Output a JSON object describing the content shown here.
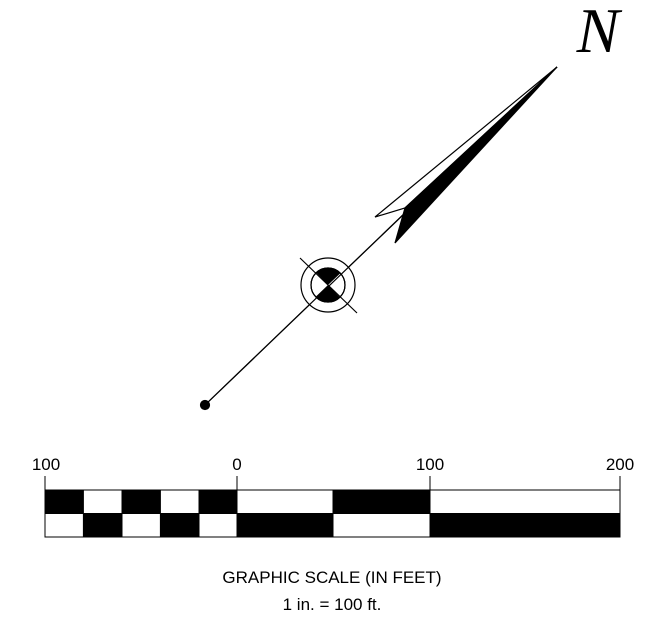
{
  "north_arrow": {
    "label": "N"
  },
  "scale": {
    "tick_labels": [
      "100",
      "0",
      "100",
      "200"
    ],
    "title": "GRAPHIC SCALE (IN FEET)",
    "subtitle": "1 in. = 100 ft."
  }
}
